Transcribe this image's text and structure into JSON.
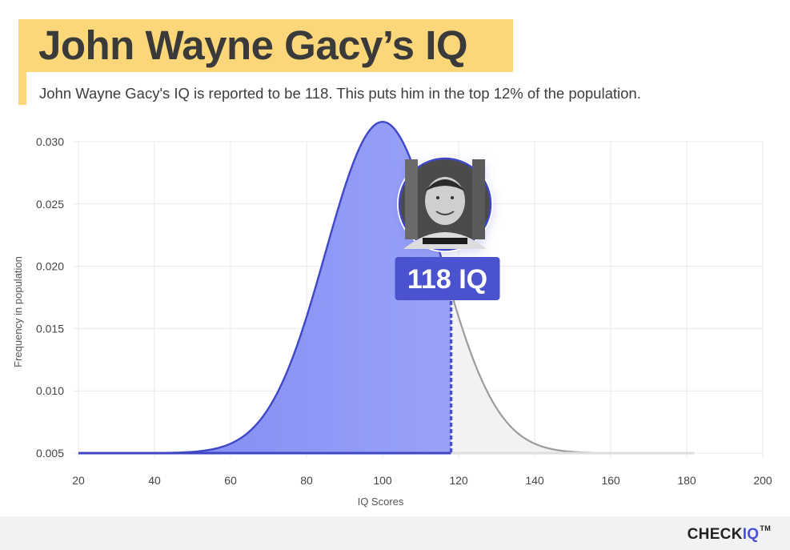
{
  "header": {
    "title": "John Wayne Gacy’s IQ",
    "subtitle": "John Wayne Gacy's IQ is reported to be 118. This puts him in the top 12% of the population."
  },
  "chart_data": {
    "type": "area",
    "xlabel": "IQ Scores",
    "ylabel": "Frequency in population",
    "xlim": [
      20,
      200
    ],
    "ylim": [
      0.005,
      0.03
    ],
    "x_ticks": [
      "20",
      "40",
      "60",
      "80",
      "100",
      "120",
      "140",
      "160",
      "180",
      "200"
    ],
    "y_ticks": [
      "0.005",
      "0.010",
      "0.015",
      "0.020",
      "0.025",
      "0.030"
    ],
    "grid": true,
    "series": [
      {
        "distribution": "normal",
        "mean": 100,
        "sd": 15,
        "x_range": [
          20,
          182
        ],
        "y_baseline": 0.005
      }
    ],
    "marker": {
      "x": 118,
      "label": "118 IQ"
    },
    "colors": {
      "filled_area": "#8a93f4",
      "filled_stroke": "#3f47c6",
      "unfilled_area": "#f2f2f2",
      "unfilled_stroke": "#9c9c9c",
      "label_bg": "#4a52d0",
      "grid": "#e9e9e9"
    }
  },
  "footer": {
    "logo_prefix": "CHECK",
    "logo_accent": "IQ",
    "logo_tm": "TM"
  },
  "icons": {
    "portrait": "person-portrait-icon"
  }
}
